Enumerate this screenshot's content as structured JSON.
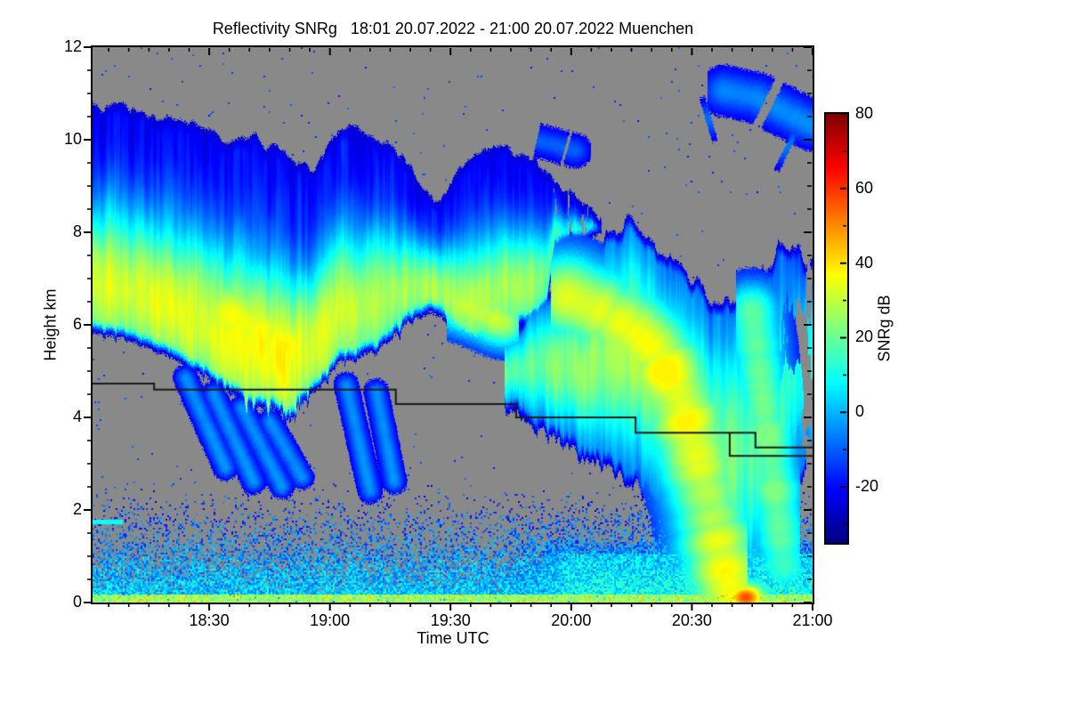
{
  "chart": {
    "title": "Reflectivity SNRg   18:01 20.07.2022 - 21:00 20.07.2022 Muenchen",
    "station": "Muenchen",
    "time_start": "18:01 20.07.2022",
    "time_end": "21:00 20.07.2022",
    "x_axis": {
      "label": "Time UTC",
      "range_minutes": [
        0,
        179
      ],
      "major_ticks": [
        {
          "min": 29,
          "label": "18:30"
        },
        {
          "min": 59,
          "label": "19:00"
        },
        {
          "min": 89,
          "label": "19:30"
        },
        {
          "min": 119,
          "label": "20:00"
        },
        {
          "min": 149,
          "label": "20:30"
        },
        {
          "min": 179,
          "label": "21:00"
        }
      ],
      "minor_step_min": 5
    },
    "y_axis": {
      "label": "Height km",
      "range_km": [
        0,
        12
      ],
      "major_ticks": [
        {
          "km": 0,
          "label": "0"
        },
        {
          "km": 2,
          "label": "2"
        },
        {
          "km": 4,
          "label": "4"
        },
        {
          "km": 6,
          "label": "6"
        },
        {
          "km": 8,
          "label": "8"
        },
        {
          "km": 10,
          "label": "10"
        },
        {
          "km": 12,
          "label": "12"
        }
      ],
      "minor_step_km": 0.5
    },
    "colorbar": {
      "label": "SNRg dB",
      "min": -35,
      "max": 80,
      "major_ticks": [
        {
          "value": 80,
          "label": "80"
        },
        {
          "value": 60,
          "label": "60"
        },
        {
          "value": 40,
          "label": "40"
        },
        {
          "value": 20,
          "label": "20"
        },
        {
          "value": 0,
          "label": "0"
        },
        {
          "value": -20,
          "label": "-20"
        }
      ],
      "minor_tick_values": [
        70,
        50,
        30,
        10,
        -10,
        -30
      ],
      "colormap": "jet"
    },
    "colors": {
      "background": "#ffffff",
      "no_data_gray": "#898989",
      "axis": "#000000",
      "melting_line": "#1a1a1a"
    }
  },
  "chart_data": {
    "type": "heatmap",
    "description": "Cloud radar reflectivity SNRg (dB) time-height cross-section. Gray = no signal. Elevated ice cloud deck 5-11 km descending over time, precipitation shaft reaching ground ~20:40, noisy boundary layer below 2 km, stepped black melting-layer height line near 4.7-3.2 km.",
    "x_units": "minutes after 18:01 UTC",
    "y_units": "km",
    "value_units": "dB",
    "value_range": [
      -35,
      80
    ],
    "melting_layer_lines": [
      [
        [
          0,
          4.73
        ],
        [
          15.3,
          4.73
        ],
        [
          15.3,
          4.6
        ],
        [
          75.4,
          4.6
        ],
        [
          75.4,
          4.29
        ],
        [
          105.3,
          4.29
        ],
        [
          105.3,
          4.0
        ],
        [
          135.0,
          4.0
        ],
        [
          135.0,
          3.67
        ],
        [
          164.8,
          3.67
        ],
        [
          164.8,
          3.35
        ],
        [
          179,
          3.35
        ]
      ],
      [
        [
          158.4,
          3.67
        ],
        [
          158.4,
          3.17
        ],
        [
          179,
          3.17
        ]
      ]
    ],
    "render": {
      "seed": 7,
      "deck": {
        "t_range": [
          0,
          126.5
        ],
        "top": [
          [
            0,
            10.65
          ],
          [
            5,
            10.8
          ],
          [
            10,
            10.7
          ],
          [
            16,
            10.5
          ],
          [
            22,
            10.42
          ],
          [
            28,
            10.22
          ],
          [
            32,
            10.02
          ],
          [
            36,
            10.12
          ],
          [
            40,
            10.02
          ],
          [
            44,
            9.92
          ],
          [
            48,
            9.75
          ],
          [
            52,
            9.45
          ],
          [
            55,
            9.28
          ],
          [
            58,
            9.72
          ],
          [
            62,
            10.28
          ],
          [
            66,
            10.22
          ],
          [
            70,
            10.0
          ],
          [
            74,
            9.8
          ],
          [
            78,
            9.45
          ],
          [
            82,
            8.95
          ],
          [
            85,
            8.72
          ],
          [
            88,
            8.78
          ],
          [
            91,
            9.35
          ],
          [
            95,
            9.62
          ],
          [
            99,
            9.78
          ],
          [
            103,
            9.85
          ],
          [
            107,
            9.7
          ],
          [
            111,
            9.45
          ],
          [
            114,
            9.28
          ],
          [
            118,
            8.95
          ],
          [
            122,
            8.6
          ],
          [
            126,
            8.35
          ]
        ],
        "bottom": [
          [
            0,
            5.85
          ],
          [
            6,
            5.8
          ],
          [
            12,
            5.62
          ],
          [
            18,
            5.42
          ],
          [
            24,
            5.12
          ],
          [
            30,
            4.92
          ],
          [
            36,
            4.62
          ],
          [
            42,
            4.47
          ],
          [
            48,
            4.37
          ],
          [
            52,
            4.52
          ],
          [
            56,
            4.82
          ],
          [
            60,
            5.22
          ],
          [
            64,
            5.42
          ],
          [
            68,
            5.57
          ],
          [
            72,
            5.67
          ],
          [
            76,
            5.97
          ],
          [
            80,
            6.22
          ],
          [
            84,
            6.32
          ],
          [
            87,
            6.22
          ],
          [
            90,
            5.92
          ],
          [
            94,
            5.67
          ],
          [
            98,
            5.72
          ],
          [
            102,
            5.92
          ],
          [
            106,
            6.02
          ],
          [
            110,
            6.22
          ],
          [
            113,
            6.42
          ],
          [
            115,
            7.7
          ],
          [
            119,
            7.8
          ],
          [
            123,
            7.9
          ],
          [
            126,
            8.0
          ]
        ],
        "core_dB": [
          [
            0,
            30
          ],
          [
            8,
            30
          ],
          [
            16,
            31
          ],
          [
            24,
            32
          ],
          [
            32,
            34
          ],
          [
            38,
            36
          ],
          [
            44,
            36
          ],
          [
            50,
            33
          ],
          [
            56,
            30
          ],
          [
            62,
            28
          ],
          [
            68,
            27
          ],
          [
            74,
            26
          ],
          [
            80,
            24
          ],
          [
            86,
            23
          ],
          [
            91,
            25
          ],
          [
            96,
            27
          ],
          [
            102,
            26
          ],
          [
            108,
            24
          ],
          [
            112,
            22
          ],
          [
            115,
            12
          ],
          [
            120,
            10
          ],
          [
            126,
            9
          ]
        ],
        "bottom_rag_km": [
          [
            0,
            0.35
          ],
          [
            24,
            0.45
          ],
          [
            30,
            0.8
          ],
          [
            36,
            1.2
          ],
          [
            42,
            1.35
          ],
          [
            48,
            1.25
          ],
          [
            54,
            1.0
          ],
          [
            60,
            0.85
          ],
          [
            66,
            1.0
          ],
          [
            72,
            0.95
          ],
          [
            78,
            0.55
          ],
          [
            86,
            0.4
          ],
          [
            100,
            0.35
          ],
          [
            110,
            0.4
          ],
          [
            118,
            0.25
          ],
          [
            126,
            0.25
          ]
        ],
        "rim_km": 0.3
      },
      "plume": {
        "t_range": [
          102.5,
          179
        ],
        "top": [
          [
            103,
            5.8
          ],
          [
            106,
            6.1
          ],
          [
            109,
            6.35
          ],
          [
            113,
            6.55
          ],
          [
            118,
            6.7
          ],
          [
            122,
            6.85
          ],
          [
            126,
            7.4
          ],
          [
            128,
            7.95
          ],
          [
            131,
            8.15
          ],
          [
            134,
            8.2
          ],
          [
            138,
            7.95
          ],
          [
            142,
            7.6
          ],
          [
            146,
            7.3
          ],
          [
            150,
            6.9
          ],
          [
            154,
            6.5
          ],
          [
            158,
            6.55
          ],
          [
            162,
            6.8
          ],
          [
            166,
            7.15
          ],
          [
            170,
            7.5
          ],
          [
            174,
            7.55
          ],
          [
            179,
            7.45
          ]
        ],
        "bottom": [
          [
            103,
            4.35
          ],
          [
            108,
            4.05
          ],
          [
            113,
            3.75
          ],
          [
            118,
            3.45
          ],
          [
            124,
            3.15
          ],
          [
            130,
            2.9
          ],
          [
            136,
            2.6
          ],
          [
            141,
            2.25
          ],
          [
            146,
            1.7
          ],
          [
            150,
            1.0
          ],
          [
            154,
            0.35
          ],
          [
            157,
            0.05
          ],
          [
            160,
            0
          ],
          [
            166,
            0
          ],
          [
            169,
            0.4
          ],
          [
            172,
            1.3
          ],
          [
            175,
            2.5
          ],
          [
            179,
            3.1
          ]
        ],
        "core_dB": [
          [
            103,
            15
          ],
          [
            110,
            17
          ],
          [
            118,
            20
          ],
          [
            126,
            22
          ],
          [
            134,
            23
          ],
          [
            142,
            21
          ],
          [
            150,
            19
          ],
          [
            158,
            17
          ],
          [
            164,
            13
          ],
          [
            170,
            9
          ],
          [
            175,
            7
          ],
          [
            179,
            7
          ]
        ],
        "rim_km": 0.3
      },
      "ridges": [
        {
          "name": "precip-core",
          "path": [
            [
              118,
              6.6
            ],
            [
              126,
              6.3
            ],
            [
              134,
              5.9
            ],
            [
              140,
              5.4
            ],
            [
              145,
              4.6
            ],
            [
              149,
              3.6
            ],
            [
              153,
              2.3
            ],
            [
              157,
              0.8
            ],
            [
              159,
              0.2
            ]
          ],
          "width_km": 0.75,
          "peak_dB": 35,
          "gap": 0
        },
        {
          "name": "streak-right",
          "path": [
            [
              164,
              6.3
            ],
            [
              168,
              3.5
            ],
            [
              172,
              0.8
            ]
          ],
          "width_km": 0.5,
          "peak_dB": 20,
          "gap": 0
        },
        {
          "name": "pocket-left",
          "path": [
            [
              0,
              6.9
            ],
            [
              12,
              6.6
            ]
          ],
          "width_km": 0.5,
          "peak_dB": 33,
          "gap": 0
        },
        {
          "name": "pocket-main",
          "path": [
            [
              34,
              6.2
            ],
            [
              48,
              5.5
            ]
          ],
          "width_km": 0.7,
          "peak_dB": 38,
          "gap": 0
        },
        {
          "name": "pocket-1940",
          "path": [
            [
              92,
              6.4
            ],
            [
              102,
              6.05
            ]
          ],
          "width_km": 0.45,
          "peak_dB": 32,
          "gap": 0
        },
        {
          "name": "patch-tr-1",
          "path": [
            [
              157,
              11.05
            ],
            [
              165,
              10.9
            ],
            [
              172,
              10.6
            ],
            [
              179,
              10.3
            ]
          ],
          "width_km": 0.3,
          "peak_dB": -5,
          "gap": 0.35
        },
        {
          "name": "patch-tr-2",
          "path": [
            [
              152,
              10.4
            ],
            [
              158,
              10.55
            ],
            [
              163,
              10.35
            ]
          ],
          "width_km": 0.27,
          "peak_dB": -8,
          "gap": 0.4
        },
        {
          "name": "patch-tr-3",
          "path": [
            [
              172,
              9.9
            ],
            [
              179,
              9.6
            ]
          ],
          "width_km": 0.32,
          "peak_dB": -7,
          "gap": 0.4
        },
        {
          "name": "patch-arm-top",
          "path": [
            [
              96,
              10.15
            ],
            [
              106,
              10.05
            ],
            [
              114,
              9.9
            ],
            [
              120,
              9.75
            ]
          ],
          "width_km": 0.2,
          "peak_dB": -10,
          "gap": 0.45
        },
        {
          "name": "patch-1820",
          "path": [
            [
              18,
              10.62
            ],
            [
              25,
              10.68
            ]
          ],
          "width_km": 0.15,
          "peak_dB": -12,
          "gap": 0.45
        },
        {
          "name": "virga-1",
          "path": [
            [
              23,
              4.85
            ],
            [
              33,
              2.9
            ]
          ],
          "width_km": 0.15,
          "peak_dB": -4,
          "gap": 0.3
        },
        {
          "name": "virga-2",
          "path": [
            [
              30,
              4.5
            ],
            [
              40,
              2.6
            ]
          ],
          "width_km": 0.15,
          "peak_dB": -4,
          "gap": 0.3
        },
        {
          "name": "virga-3",
          "path": [
            [
              37,
              4.2
            ],
            [
              47,
              2.5
            ]
          ],
          "width_km": 0.15,
          "peak_dB": -4,
          "gap": 0.3
        },
        {
          "name": "virga-4",
          "path": [
            [
              44,
              3.9
            ],
            [
              52,
              2.7
            ]
          ],
          "width_km": 0.15,
          "peak_dB": -4,
          "gap": 0.3
        },
        {
          "name": "virga-5",
          "path": [
            [
              63,
              4.7
            ],
            [
              69,
              2.4
            ]
          ],
          "width_km": 0.15,
          "peak_dB": -4,
          "gap": 0.3
        },
        {
          "name": "virga-6",
          "path": [
            [
              70.5,
              4.55
            ],
            [
              75,
              2.6
            ]
          ],
          "width_km": 0.15,
          "peak_dB": -4,
          "gap": 0.3
        }
      ],
      "boundary_layer": {
        "top_km": 2.6,
        "coverage": [
          [
            0,
            0.985
          ],
          [
            0.15,
            0.96
          ],
          [
            0.3,
            0.9
          ],
          [
            0.5,
            0.8
          ],
          [
            0.7,
            0.68
          ],
          [
            0.9,
            0.55
          ],
          [
            1.1,
            0.45
          ],
          [
            1.3,
            0.34
          ],
          [
            1.6,
            0.22
          ],
          [
            1.9,
            0.13
          ],
          [
            2.2,
            0.05
          ],
          [
            2.45,
            0.015
          ],
          [
            2.6,
            0
          ]
        ],
        "value_top_dB": -17,
        "value_slope_dB": 21,
        "rand_spread_dB": 22,
        "late_boost_after_min": 112,
        "late_boost_dB": 7,
        "ground_band_km": 0.16,
        "ground_band_min_dB": 18,
        "ground_band_spread_dB": 16
      },
      "ground_hotspot": {
        "t_min": 162.5,
        "h_km": 0.1,
        "sigma_t_min": 3.2,
        "sigma_h_km": 0.2,
        "peak_dB": 58
      },
      "left_line": {
        "t_range": [
          0,
          7.5
        ],
        "h_range": [
          1.68,
          1.78
        ],
        "dB": 9
      },
      "sparse_speckle": {
        "density": 0.0045,
        "dB": -13,
        "spread_dB": 12
      },
      "striation": {
        "amp_dB": 12,
        "t_scale": 1.3,
        "h_scale": 0.1
      },
      "texture": {
        "amp_dB": 8,
        "t_scale": 0.45,
        "h_scale": 0.8
      }
    }
  }
}
